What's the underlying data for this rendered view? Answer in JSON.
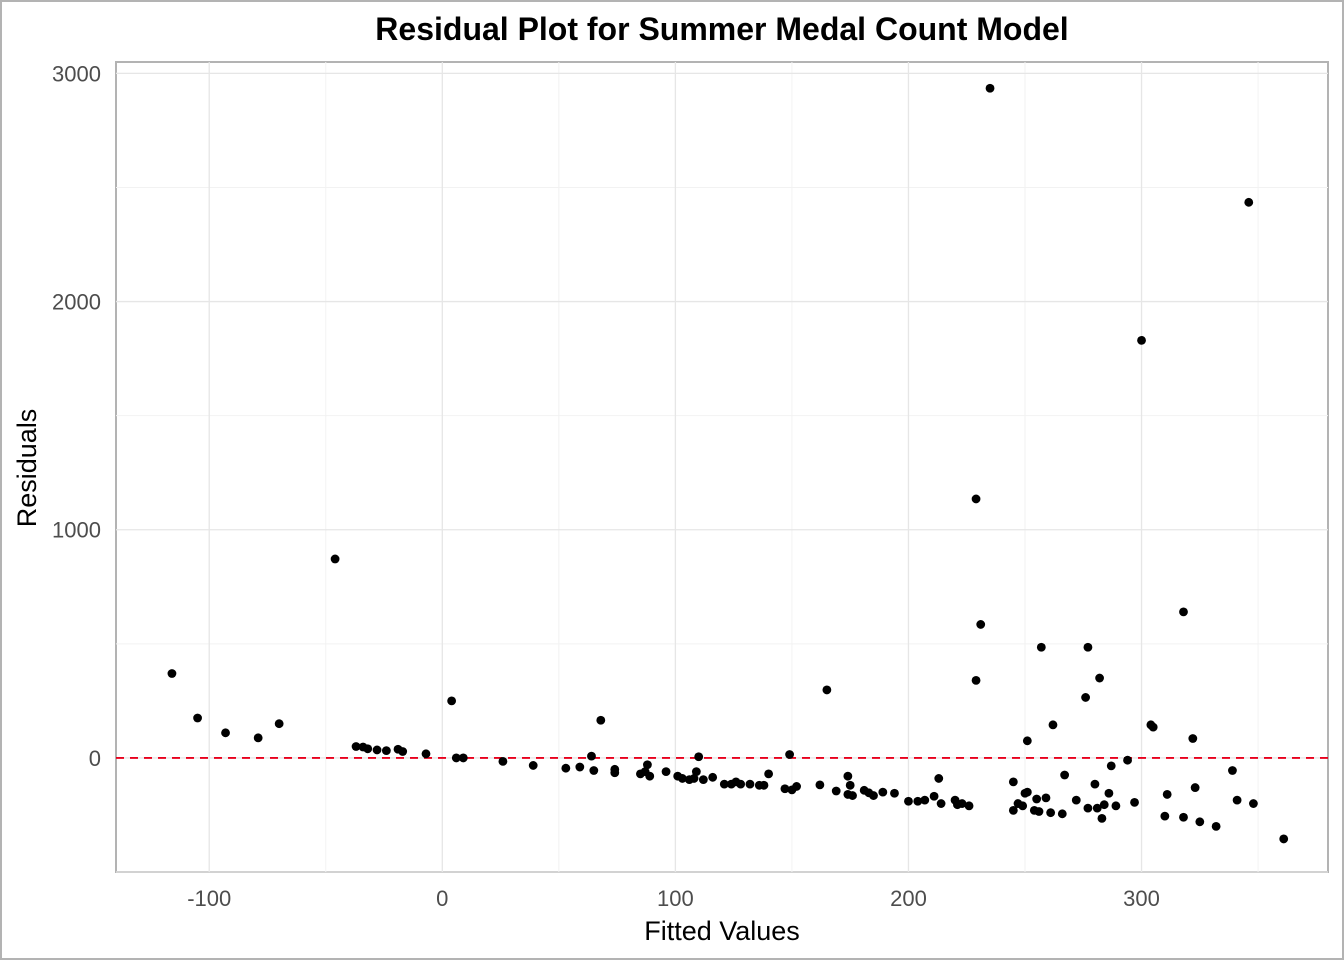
{
  "chart_data": {
    "type": "scatter",
    "title": "Residual Plot for Summer Medal Count Model",
    "xlabel": "Fitted Values",
    "ylabel": "Residuals",
    "xlim": [
      -140,
      380
    ],
    "ylim": [
      -500,
      3050
    ],
    "x_ticks": [
      -100,
      0,
      100,
      200,
      300
    ],
    "x_tick_labels": [
      "-100",
      "0",
      "100",
      "200",
      "300"
    ],
    "y_ticks": [
      0,
      1000,
      2000,
      3000
    ],
    "y_tick_labels": [
      "0",
      "1000",
      "2000",
      "3000"
    ],
    "grid": true,
    "reference_line": {
      "y": 0,
      "color": "#e8001c",
      "style": "dashed"
    },
    "point_color": "#000000",
    "points": [
      {
        "x": -116,
        "y": 370
      },
      {
        "x": -105,
        "y": 175
      },
      {
        "x": -93,
        "y": 110
      },
      {
        "x": -79,
        "y": 88
      },
      {
        "x": -70,
        "y": 150
      },
      {
        "x": -46,
        "y": 872
      },
      {
        "x": -37,
        "y": 50
      },
      {
        "x": -34,
        "y": 48
      },
      {
        "x": -32,
        "y": 40
      },
      {
        "x": -28,
        "y": 35
      },
      {
        "x": -24,
        "y": 32
      },
      {
        "x": -19,
        "y": 38
      },
      {
        "x": -17,
        "y": 28
      },
      {
        "x": -7,
        "y": 18
      },
      {
        "x": 4,
        "y": 250
      },
      {
        "x": 6,
        "y": 0
      },
      {
        "x": 9,
        "y": 0
      },
      {
        "x": 26,
        "y": -15
      },
      {
        "x": 39,
        "y": -33
      },
      {
        "x": 53,
        "y": -45
      },
      {
        "x": 59,
        "y": -40
      },
      {
        "x": 64,
        "y": 8
      },
      {
        "x": 65,
        "y": -55
      },
      {
        "x": 68,
        "y": 165
      },
      {
        "x": 74,
        "y": -50
      },
      {
        "x": 74,
        "y": -65
      },
      {
        "x": 85,
        "y": -70
      },
      {
        "x": 87,
        "y": -60
      },
      {
        "x": 88,
        "y": -30
      },
      {
        "x": 89,
        "y": -80
      },
      {
        "x": 96,
        "y": -60
      },
      {
        "x": 101,
        "y": -80
      },
      {
        "x": 103,
        "y": -90
      },
      {
        "x": 106,
        "y": -95
      },
      {
        "x": 108,
        "y": -90
      },
      {
        "x": 109,
        "y": -60
      },
      {
        "x": 110,
        "y": 5
      },
      {
        "x": 112,
        "y": -95
      },
      {
        "x": 116,
        "y": -85
      },
      {
        "x": 121,
        "y": -115
      },
      {
        "x": 124,
        "y": -115
      },
      {
        "x": 126,
        "y": -105
      },
      {
        "x": 128,
        "y": -115
      },
      {
        "x": 132,
        "y": -115
      },
      {
        "x": 136,
        "y": -120
      },
      {
        "x": 138,
        "y": -120
      },
      {
        "x": 140,
        "y": -70
      },
      {
        "x": 147,
        "y": -135
      },
      {
        "x": 149,
        "y": 15
      },
      {
        "x": 150,
        "y": -140
      },
      {
        "x": 152,
        "y": -125
      },
      {
        "x": 162,
        "y": -118
      },
      {
        "x": 165,
        "y": 298
      },
      {
        "x": 169,
        "y": -145
      },
      {
        "x": 174,
        "y": -80
      },
      {
        "x": 174,
        "y": -160
      },
      {
        "x": 175,
        "y": -120
      },
      {
        "x": 176,
        "y": -165
      },
      {
        "x": 181,
        "y": -142
      },
      {
        "x": 183,
        "y": -153
      },
      {
        "x": 185,
        "y": -165
      },
      {
        "x": 189,
        "y": -150
      },
      {
        "x": 194,
        "y": -155
      },
      {
        "x": 200,
        "y": -190
      },
      {
        "x": 204,
        "y": -190
      },
      {
        "x": 207,
        "y": -185
      },
      {
        "x": 211,
        "y": -168
      },
      {
        "x": 213,
        "y": -90
      },
      {
        "x": 214,
        "y": -200
      },
      {
        "x": 220,
        "y": -185
      },
      {
        "x": 221,
        "y": -205
      },
      {
        "x": 223,
        "y": -200
      },
      {
        "x": 226,
        "y": -210
      },
      {
        "x": 229,
        "y": 1135
      },
      {
        "x": 229,
        "y": 340
      },
      {
        "x": 231,
        "y": 585
      },
      {
        "x": 235,
        "y": 2935
      },
      {
        "x": 245,
        "y": -230
      },
      {
        "x": 245,
        "y": -105
      },
      {
        "x": 247,
        "y": -200
      },
      {
        "x": 249,
        "y": -210
      },
      {
        "x": 250,
        "y": -155
      },
      {
        "x": 251,
        "y": -150
      },
      {
        "x": 251,
        "y": 75
      },
      {
        "x": 254,
        "y": -230
      },
      {
        "x": 255,
        "y": -180
      },
      {
        "x": 256,
        "y": -235
      },
      {
        "x": 257,
        "y": 485
      },
      {
        "x": 259,
        "y": -175
      },
      {
        "x": 261,
        "y": -240
      },
      {
        "x": 262,
        "y": 145
      },
      {
        "x": 266,
        "y": -245
      },
      {
        "x": 267,
        "y": -75
      },
      {
        "x": 272,
        "y": -185
      },
      {
        "x": 276,
        "y": 265
      },
      {
        "x": 277,
        "y": 485
      },
      {
        "x": 277,
        "y": -220
      },
      {
        "x": 280,
        "y": -115
      },
      {
        "x": 281,
        "y": -220
      },
      {
        "x": 282,
        "y": 350
      },
      {
        "x": 283,
        "y": -265
      },
      {
        "x": 284,
        "y": -205
      },
      {
        "x": 286,
        "y": -155
      },
      {
        "x": 287,
        "y": -35
      },
      {
        "x": 289,
        "y": -210
      },
      {
        "x": 294,
        "y": -10
      },
      {
        "x": 297,
        "y": -195
      },
      {
        "x": 300,
        "y": 1830
      },
      {
        "x": 304,
        "y": 145
      },
      {
        "x": 305,
        "y": 135
      },
      {
        "x": 310,
        "y": -255
      },
      {
        "x": 311,
        "y": -160
      },
      {
        "x": 318,
        "y": 640
      },
      {
        "x": 318,
        "y": -260
      },
      {
        "x": 322,
        "y": 85
      },
      {
        "x": 323,
        "y": -130
      },
      {
        "x": 325,
        "y": -280
      },
      {
        "x": 332,
        "y": -300
      },
      {
        "x": 339,
        "y": -55
      },
      {
        "x": 341,
        "y": -185
      },
      {
        "x": 346,
        "y": 2435
      },
      {
        "x": 348,
        "y": -200
      },
      {
        "x": 361,
        "y": -355
      }
    ]
  }
}
